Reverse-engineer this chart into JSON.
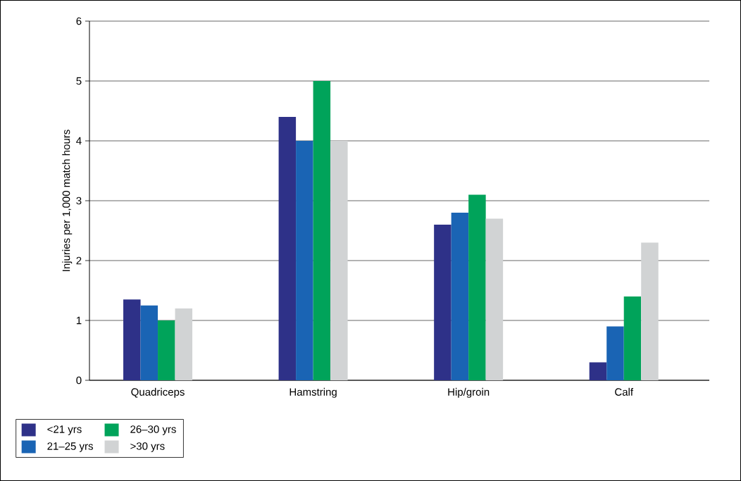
{
  "chart_data": {
    "type": "bar",
    "ylabel": "Injuries per 1,000 match hours",
    "categories": [
      "Quadriceps",
      "Hamstring",
      "Hip/groin",
      "Calf"
    ],
    "series": [
      {
        "name": "<21 yrs",
        "color": "#2e3188",
        "values": [
          1.35,
          4.4,
          2.6,
          0.3
        ]
      },
      {
        "name": "21–25 yrs",
        "color": "#1a64b4",
        "values": [
          1.25,
          4.0,
          2.8,
          0.9
        ]
      },
      {
        "name": "26–30 yrs",
        "color": "#00a35a",
        "values": [
          1.0,
          5.0,
          3.1,
          1.4
        ]
      },
      {
        "name": ">30 yrs",
        "color": "#d1d3d4",
        "values": [
          1.2,
          4.0,
          2.7,
          2.3
        ]
      }
    ],
    "ylim": [
      0,
      6
    ],
    "yticks": [
      0,
      1,
      2,
      3,
      4,
      5,
      6
    ],
    "grid": "y",
    "legend": "bottom left"
  }
}
